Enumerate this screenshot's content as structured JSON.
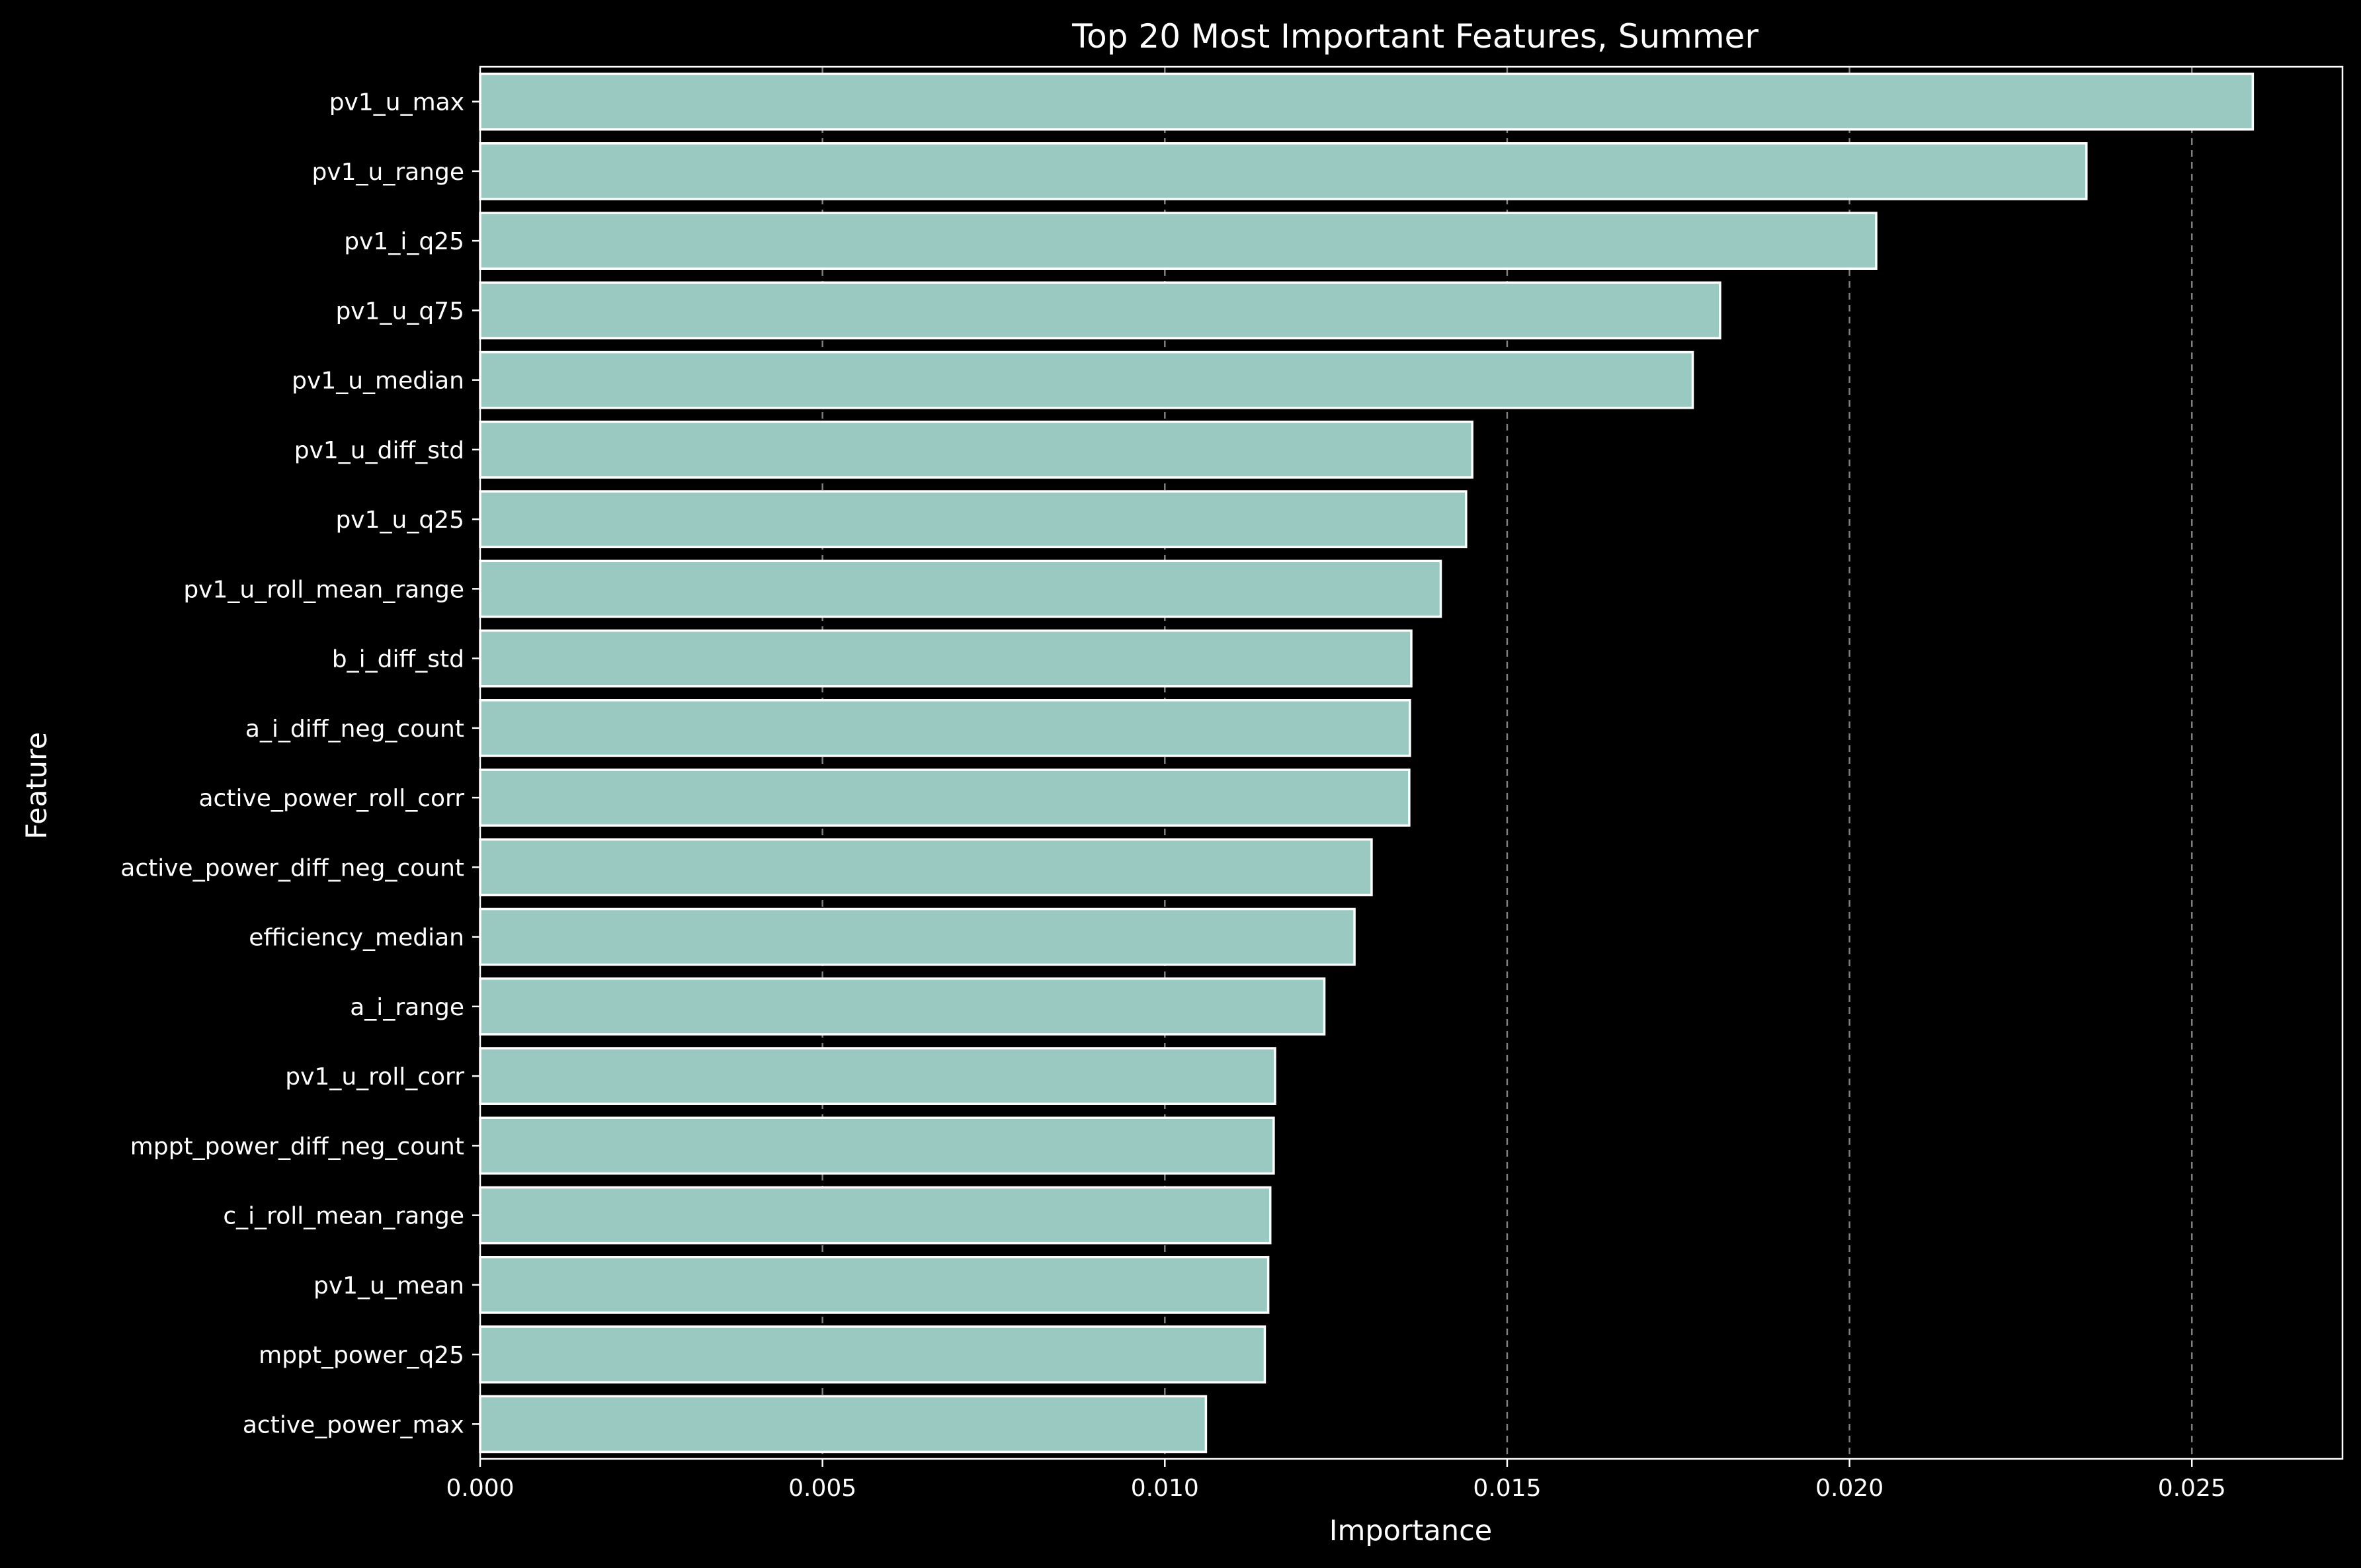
{
  "chart_data": {
    "type": "bar",
    "orientation": "horizontal",
    "title": "Top 20 Most Important Features, Summer",
    "xlabel": "Importance",
    "ylabel": "Feature",
    "categories": [
      "pv1_u_max",
      "pv1_u_range",
      "pv1_i_q25",
      "pv1_u_q75",
      "pv1_u_median",
      "pv1_u_diff_std",
      "pv1_u_q25",
      "pv1_u_roll_mean_range",
      "b_i_diff_std",
      "a_i_diff_neg_count",
      "active_power_roll_corr",
      "active_power_diff_neg_count",
      "efficiency_median",
      "a_i_range",
      "pv1_u_roll_corr",
      "mppt_power_diff_neg_count",
      "c_i_roll_mean_range",
      "pv1_u_mean",
      "mppt_power_q25",
      "active_power_max"
    ],
    "values": [
      0.02589,
      0.02346,
      0.02039,
      0.01811,
      0.01771,
      0.01449,
      0.0144,
      0.01403,
      0.0136,
      0.01358,
      0.01357,
      0.01302,
      0.01277,
      0.01233,
      0.01161,
      0.01159,
      0.01154,
      0.01151,
      0.01146,
      0.0106
    ],
    "xlim": [
      0.0,
      0.0272
    ],
    "xticks": [
      0.0,
      0.005,
      0.01,
      0.015,
      0.02,
      0.025
    ],
    "xtick_labels": [
      "0.000",
      "0.005",
      "0.010",
      "0.015",
      "0.020",
      "0.025"
    ],
    "grid": "x, dashed",
    "bar_color": "#99c9c0",
    "bar_edge_color": "#ffffff",
    "background_color": "#000000",
    "text_color": "#ffffff"
  }
}
